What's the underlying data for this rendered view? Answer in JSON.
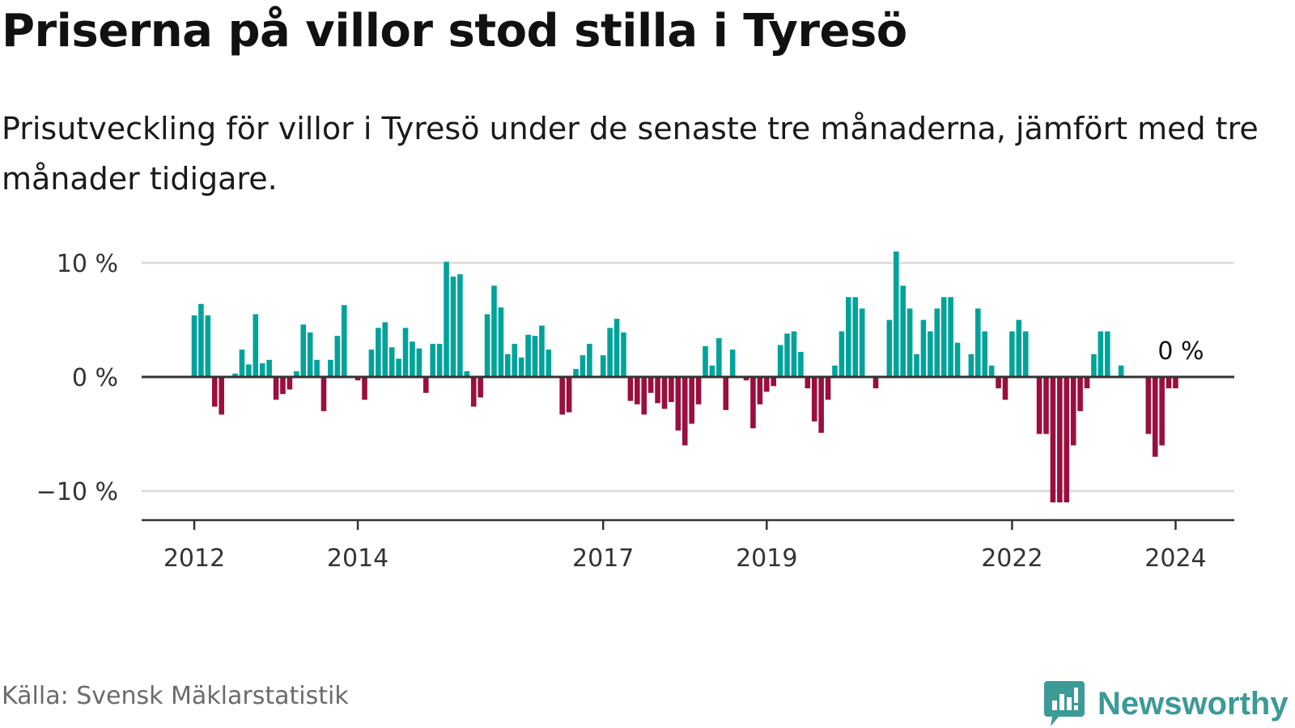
{
  "title": "Priserna på villor stod stilla i Tyresö",
  "subtitle": "Prisutveckling för villor i Tyresö under de senaste tre månaderna, jämfört med tre månader tidigare.",
  "source": "Källa: Svensk Mäklarstatistik",
  "brand": "Newsworthy",
  "colors": {
    "positive": "#00a39a",
    "negative": "#9a0f3f",
    "grid": "#d9d9d9",
    "brand": "#3c9a97"
  },
  "chart_data": {
    "type": "bar",
    "title": "Priserna på villor stod stilla i Tyresö",
    "subtitle": "Prisutveckling för villor i Tyresö under de senaste tre månaderna, jämfört med tre månader tidigare.",
    "xlabel": "",
    "ylabel": "",
    "unit": "%",
    "ylim": [
      -13,
      11
    ],
    "yticks": [
      {
        "value": 10,
        "label": "10 %"
      },
      {
        "value": 0,
        "label": "0 %"
      },
      {
        "value": -10,
        "label": "−10 %"
      }
    ],
    "xticks": [
      {
        "month_index": 0,
        "label": "2012"
      },
      {
        "month_index": 24,
        "label": "2014"
      },
      {
        "month_index": 60,
        "label": "2017"
      },
      {
        "month_index": 84,
        "label": "2019"
      },
      {
        "month_index": 120,
        "label": "2022"
      },
      {
        "month_index": 144,
        "label": "2024"
      }
    ],
    "period": {
      "start": "2012-01",
      "end": "2024-04",
      "frequency": "monthly"
    },
    "last_value_label": "0 %",
    "values": [
      5.4,
      6.4,
      5.4,
      -2.6,
      -3.3,
      0,
      0.3,
      2.4,
      1.1,
      5.5,
      1.2,
      1.5,
      -2,
      -1.5,
      -1.1,
      0.5,
      4.6,
      3.9,
      1.5,
      -3,
      1.5,
      3.6,
      6.3,
      0,
      -0.3,
      -2,
      2.4,
      4.3,
      4.8,
      2.6,
      1.6,
      4.3,
      3.1,
      2.5,
      -1.4,
      2.9,
      2.9,
      10.1,
      8.8,
      9,
      0.5,
      -2.6,
      -1.8,
      5.5,
      8,
      6.1,
      2,
      2.9,
      1.7,
      3.7,
      3.6,
      4.5,
      2.4,
      0,
      -3.3,
      -3.1,
      0.7,
      1.9,
      2.9,
      0.1,
      1.9,
      4.3,
      5.1,
      3.9,
      -2.1,
      -2.4,
      -3.3,
      -1.4,
      -2.3,
      -2.8,
      -2.2,
      -4.7,
      -6,
      -4.1,
      -2.4,
      2.7,
      1,
      3.4,
      -2.9,
      2.4,
      0,
      -0.3,
      -4.5,
      -2.4,
      -1.3,
      -0.8,
      2.8,
      3.8,
      4,
      2.2,
      -1,
      -3.9,
      -4.9,
      -2,
      1,
      4,
      7,
      7,
      6,
      0,
      -1,
      0,
      5,
      11,
      8,
      6,
      2,
      5,
      4,
      6,
      7,
      7,
      3,
      0,
      2,
      6,
      4,
      1,
      -1,
      -2,
      4,
      5,
      4,
      0,
      -5,
      -5,
      -11,
      -11,
      -11,
      -6,
      -3,
      -1,
      2,
      4,
      4,
      0,
      1,
      0,
      0,
      0,
      -5,
      -7,
      -6,
      -1,
      -1,
      0
    ]
  }
}
